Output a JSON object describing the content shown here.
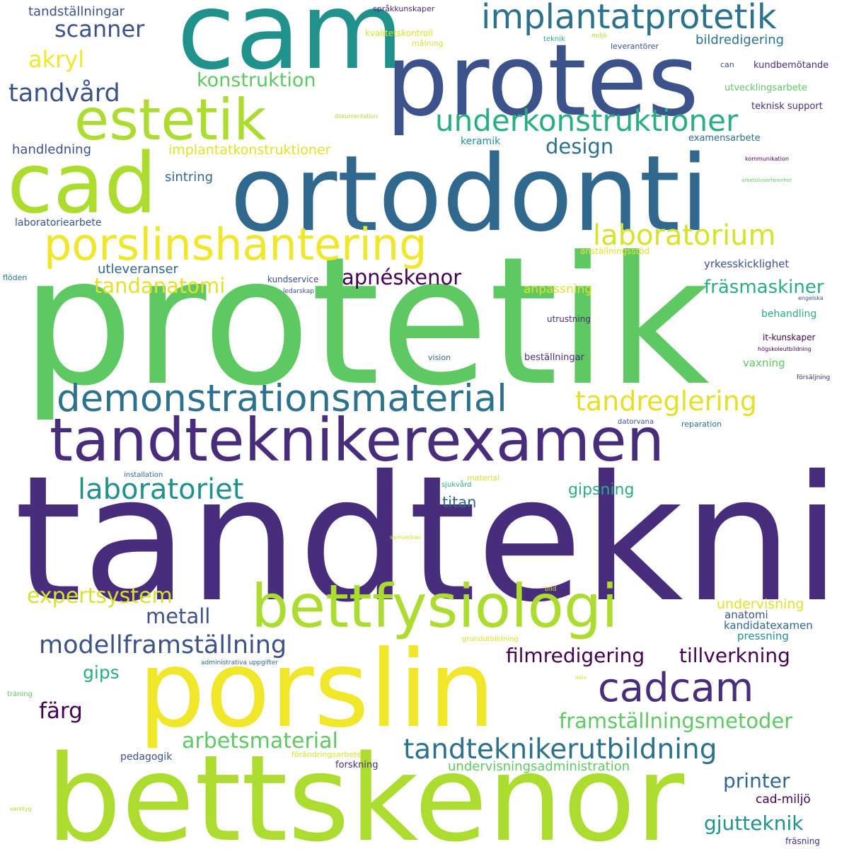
{
  "colors": {
    "background": "#ffffff",
    "purple_dark": "#440154",
    "indigo": "#472d7b",
    "blue": "#3b528b",
    "steel_blue": "#2c728e",
    "teal": "#21918c",
    "green_teal": "#28ae80",
    "green": "#5ec962",
    "lime": "#addc30",
    "yellow": "#fde725"
  },
  "words": [
    "tandteknik",
    "protetik",
    "bettskenor",
    "porslin",
    "ortodonti",
    "cam",
    "protes",
    "cad",
    "tandteknikerexamen",
    "bettfysiologi",
    "estetik",
    "porslinshantering",
    "demonstrationsmaterial",
    "cadcam",
    "implantatprotetik",
    "underkonstruktioner",
    "tandteknikerutbildning",
    "laboratorium",
    "laboratoriet",
    "modellframställning",
    "tandreglering",
    "framställningsmetoder",
    "tandvård",
    "scanner",
    "akryl",
    "apnéskenor",
    "expertsystem",
    "arbetsmaterial",
    "tillverkning",
    "filmredigering",
    "tandanatomi",
    "fräsmaskiner",
    "design",
    "konstruktion",
    "metall",
    "printer",
    "gjutteknik",
    "färg",
    "gipsning",
    "gips",
    "titan",
    "undervisning",
    "undervisningsadministration",
    "implantatkonstruktioner",
    "tandställningar",
    "bildredigering",
    "handledning",
    "sintring",
    "utleveranser",
    "yrkesskicklighet",
    "anpassning",
    "cad-miljö",
    "kandidatexamen",
    "pressning",
    "anatomi",
    "keramik",
    "laboratoriearbete",
    "behandling",
    "vaxning",
    "pedagogik",
    "forskning",
    "kundbemötande",
    "teknisk support",
    "utvecklingsarbete",
    "examensarbete",
    "utrustning",
    "beställningar",
    "anställningsstöd",
    "it-kunskaper",
    "kundservice",
    "kvalitetskontroll",
    "språkkunskaper",
    "målning",
    "leverantörer",
    "teknik",
    "miljö",
    "can",
    "fräsning",
    "förändringsarbete",
    "vision",
    "reparation",
    "datorvana",
    "material",
    "sjukvård",
    "installation",
    "flöden",
    "ledarskap",
    "engelska",
    "högskoleutbildning",
    "försäljning",
    "kommunikation",
    "arbetslivserfarenhet",
    "dokumentation",
    "grundutbildning",
    "administrativa uppgifter",
    "samverkan",
    "bild",
    "data",
    "träning",
    "verktyg"
  ]
}
